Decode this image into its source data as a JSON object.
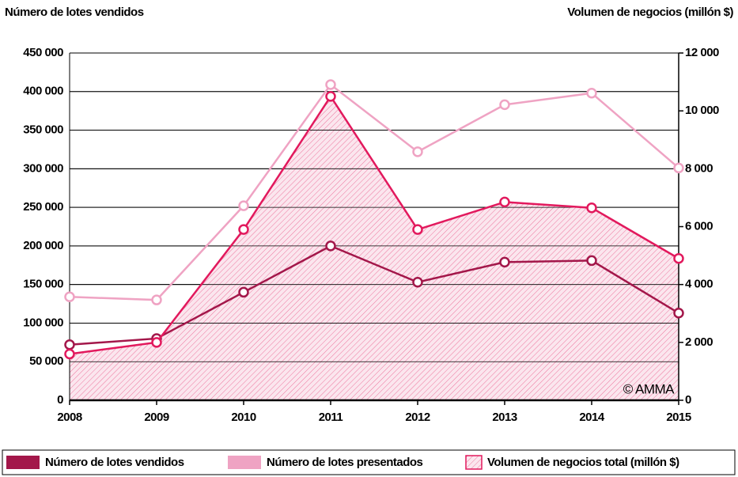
{
  "chart_data": {
    "type": "line",
    "y_label": "Número de lotes vendidos",
    "y2_label": "Volumen de negocios (millón $)",
    "annotation": "© AMMA",
    "categories": [
      "2008",
      "2009",
      "2010",
      "2011",
      "2012",
      "2013",
      "2014",
      "2015"
    ],
    "series": [
      {
        "name": "Número de lotes vendidos",
        "color": "#a3174a",
        "values": [
          72000,
          80000,
          140000,
          200000,
          153000,
          179000,
          181000,
          113000
        ]
      },
      {
        "name": "Número de lotes presentados",
        "color": "#efa3c3",
        "values": [
          134000,
          130000,
          252000,
          409000,
          322000,
          383000,
          398000,
          301000
        ]
      },
      {
        "name": "Volumen de negocios total (millón $)",
        "color": "#e2195d",
        "axis": "y2",
        "area": true,
        "values": [
          1600,
          2000,
          5900,
          10500,
          5900,
          6850,
          6650,
          4900
        ]
      }
    ],
    "ylim": [
      0,
      450000
    ],
    "yticks": [
      0,
      {
        "value": 50000,
        "label": "50 000"
      },
      {
        "value": 100000,
        "label": "100 000"
      },
      {
        "value": 150000,
        "label": "150 000"
      },
      {
        "value": 200000,
        "label": "200 000"
      },
      {
        "value": 250000,
        "label": "250 000"
      },
      {
        "value": 300000,
        "label": "300 000"
      },
      {
        "value": 350000,
        "label": "350 000"
      },
      {
        "value": 400000,
        "label": "400 000"
      },
      {
        "value": 450000,
        "label": "450 000"
      }
    ],
    "y2lim": [
      0,
      12000
    ],
    "y2ticks": [
      0,
      {
        "value": 2000,
        "label": "2 000"
      },
      {
        "value": 4000,
        "label": "4 000"
      },
      {
        "value": 6000,
        "label": "6 000"
      },
      {
        "value": 8000,
        "label": "8 000"
      },
      {
        "value": 10000,
        "label": "10 000"
      },
      {
        "value": 12000,
        "label": "12 000"
      }
    ],
    "grid": true,
    "legend": "bottom"
  }
}
